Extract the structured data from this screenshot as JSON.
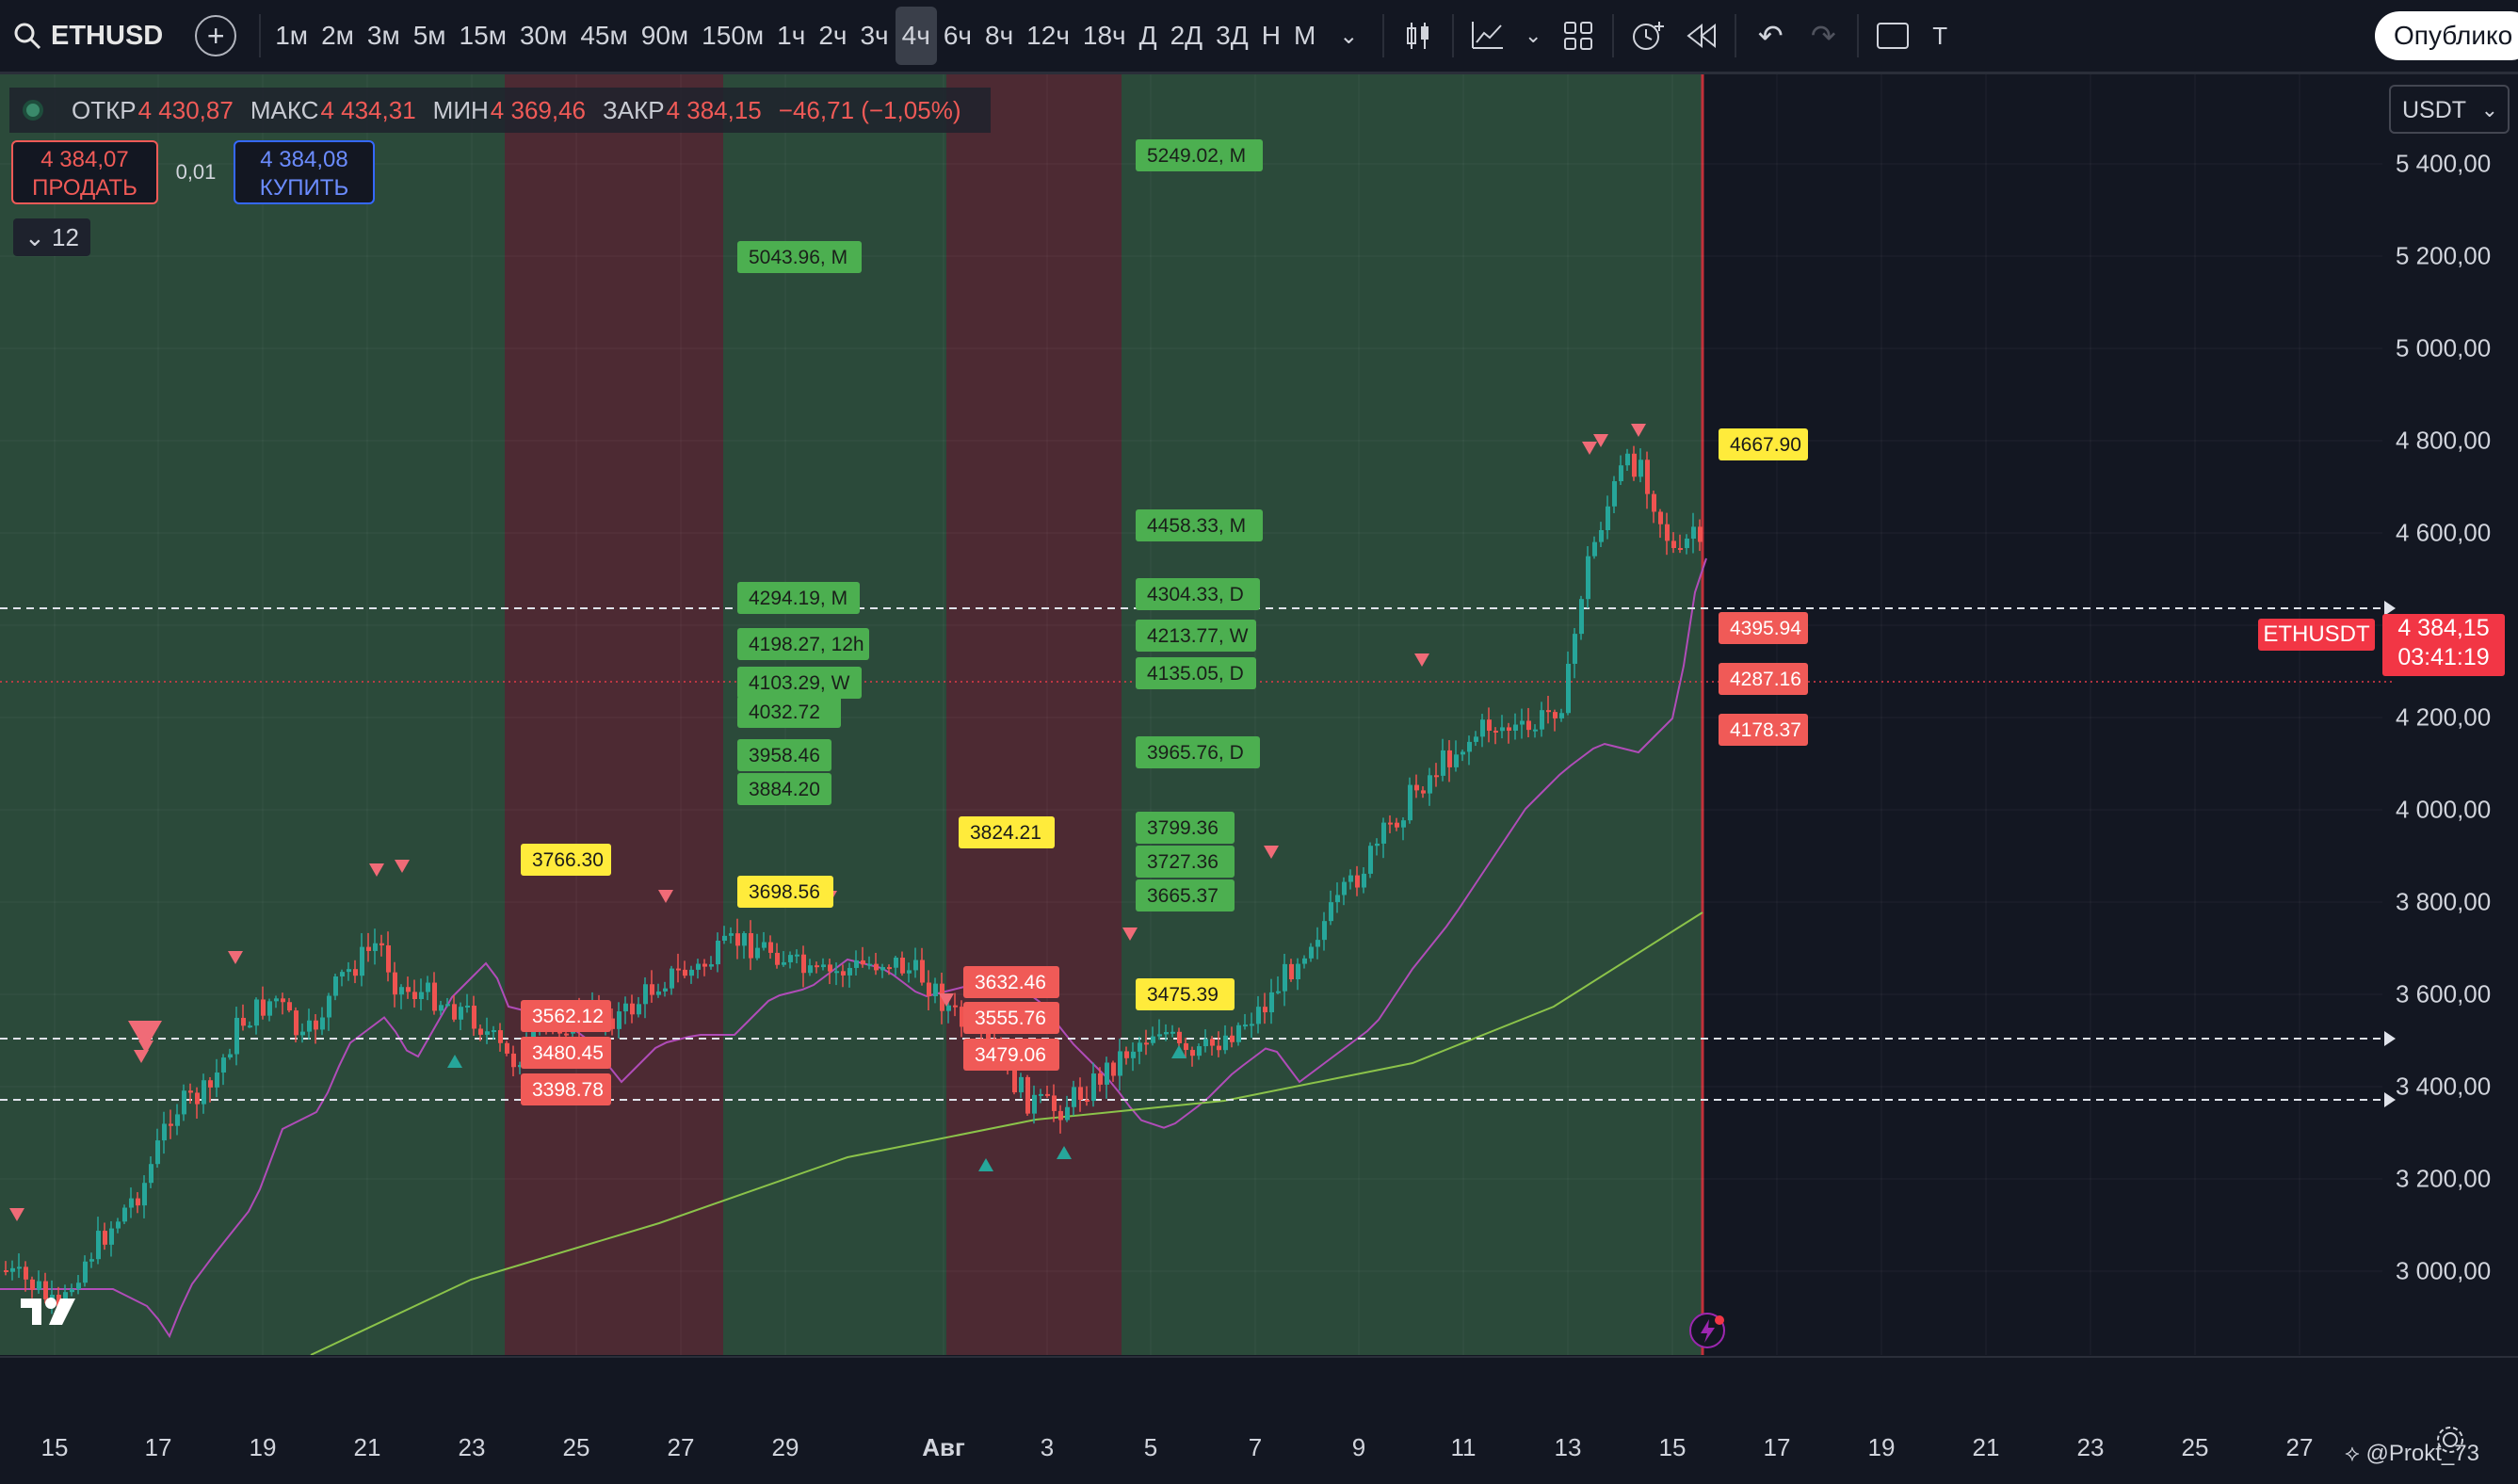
{
  "toolbar": {
    "symbol": "ETHUSD",
    "timeframes": [
      "1м",
      "2м",
      "3м",
      "5м",
      "15м",
      "30м",
      "45м",
      "90м",
      "150м",
      "1ч",
      "2ч",
      "3ч",
      "4ч",
      "6ч",
      "8ч",
      "12ч",
      "18ч",
      "Д",
      "2Д",
      "3Д",
      "Н",
      "М"
    ],
    "active_timeframe": "4ч",
    "publish_label": "Опублико",
    "cut_label": "Т"
  },
  "legend": {
    "open_label": "ОТКР",
    "open": "4 430,87",
    "high_label": "МАКС",
    "high": "4 434,31",
    "low_label": "МИН",
    "low": "4 369,46",
    "close_label": "ЗАКР",
    "close": "4 384,15",
    "change": "−46,71 (−1,05%)"
  },
  "trade": {
    "sell_price": "4 384,07",
    "sell_label": "ПРОДАТЬ",
    "spread": "0,01",
    "buy_price": "4 384,08",
    "buy_label": "КУПИТЬ"
  },
  "indicators_count": "12",
  "currency": "USDT",
  "price_axis": [
    "5 400,00",
    "5 200,00",
    "5 000,00",
    "4 800,00",
    "4 600,00",
    "4 400,00",
    "4 200,00",
    "4 000,00",
    "3 800,00",
    "3 600,00",
    "3 400,00",
    "3 200,00",
    "3 000,00"
  ],
  "current": {
    "symbol": "ETHUSDT",
    "price": "4 384,15",
    "countdown": "03:41:19"
  },
  "time_axis": [
    "15",
    "17",
    "19",
    "21",
    "23",
    "25",
    "27",
    "29",
    "Авг",
    "3",
    "5",
    "7",
    "9",
    "11",
    "13",
    "15",
    "17",
    "19",
    "21",
    "23",
    "25",
    "27"
  ],
  "labels_green": [
    {
      "text": "5249.02, M"
    },
    {
      "text": "5043.96, M"
    },
    {
      "text": "4458.33, M"
    },
    {
      "text": "4304.33, D"
    },
    {
      "text": "4294.19, M"
    },
    {
      "text": "4213.77, W"
    },
    {
      "text": "4198.27, 12h"
    },
    {
      "text": "4135.05, D"
    },
    {
      "text": "4103.29, W"
    },
    {
      "text": "4032.72"
    },
    {
      "text": "3965.76, D"
    },
    {
      "text": "3958.46"
    },
    {
      "text": "3884.20"
    },
    {
      "text": "3799.36"
    },
    {
      "text": "3727.36"
    },
    {
      "text": "3665.37"
    }
  ],
  "labels_yellow": [
    {
      "text": "3766.30"
    },
    {
      "text": "3824.21"
    },
    {
      "text": "3698.56"
    },
    {
      "text": "3475.39"
    },
    {
      "text": "4667.90"
    }
  ],
  "labels_red": [
    {
      "text": "3562.12"
    },
    {
      "text": "3480.45"
    },
    {
      "text": "3398.78"
    },
    {
      "text": "3632.46"
    },
    {
      "text": "3555.76"
    },
    {
      "text": "3479.06"
    },
    {
      "text": "4395.94"
    },
    {
      "text": "4287.16"
    },
    {
      "text": "4178.37"
    }
  ],
  "watermark": "@Prokt_73",
  "colors": {
    "up": "#26a69a",
    "down": "#ef5350",
    "zone_green": "#2b4a3a",
    "zone_red": "#4d2a33",
    "bg": "#131722"
  }
}
